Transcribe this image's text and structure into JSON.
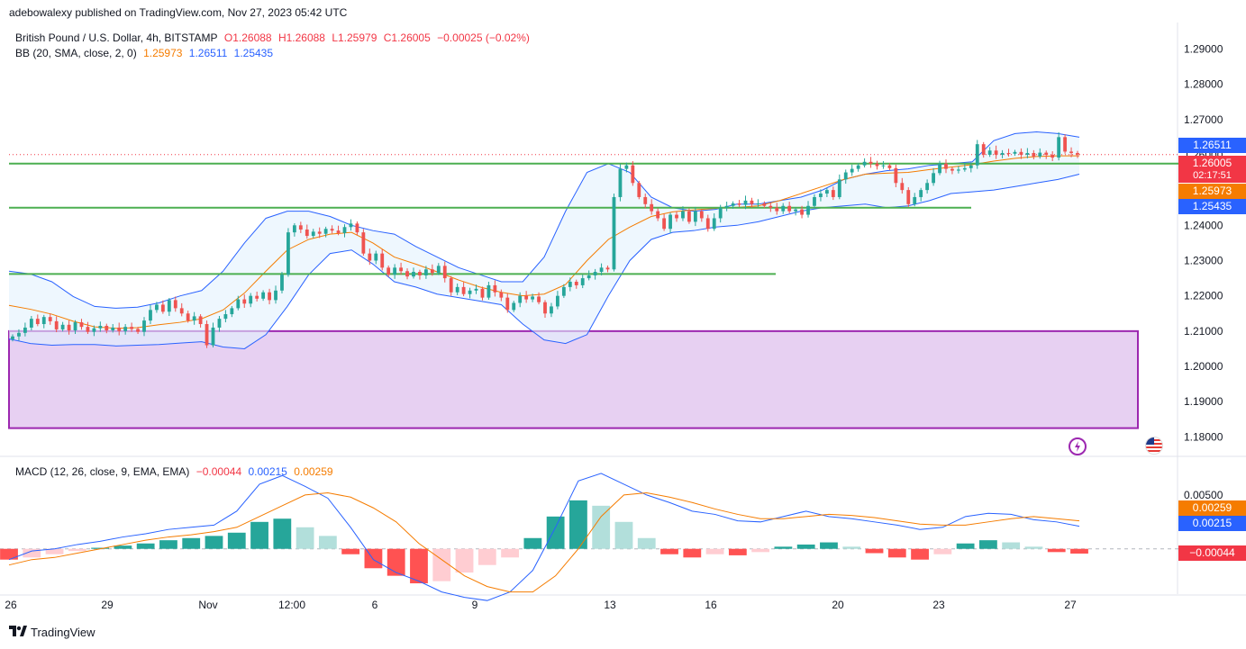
{
  "publisher": "adebowalexy published on TradingView.com, Nov 27, 2023 05:42 UTC",
  "legend": {
    "symbol": "British Pound / U.S. Dollar, 4h, BITSTAMP",
    "ohlc_o": "O1.26088",
    "ohlc_h": "H1.26088",
    "ohlc_l": "L1.25979",
    "ohlc_c": "C1.26005",
    "change": "−0.00025 (−0.02%)",
    "bb_label": "BB (20, SMA, close, 2, 0)",
    "bb_basis": "1.25973",
    "bb_upper": "1.26511",
    "bb_lower": "1.25435"
  },
  "macd_legend": {
    "label": "MACD (12, 26, close, 9, EMA, EMA)",
    "hist": "−0.00044",
    "macd": "0.00215",
    "signal": "0.00259"
  },
  "badges": {
    "bb_upper": "1.26511",
    "price": "1.26005",
    "countdown": "02:17:51",
    "bb_basis": "1.25973",
    "bb_lower": "1.25435",
    "macd_signal": "0.00259",
    "macd_line": "0.00215",
    "macd_hist": "−0.00044"
  },
  "brand": "TradingView",
  "colors": {
    "up": "#26a69a",
    "down": "#ef5350",
    "bb_upper": "#2962ff",
    "bb_basis": "#f57c00",
    "bb_fill": "#e3f2fd",
    "support": "#4caf50",
    "zone_fill": "#e1c4ef",
    "zone_border": "#9c27b0",
    "hist_up_strong": "#26a69a",
    "hist_up_weak": "#b2dfdb",
    "hist_down_strong": "#ff5252",
    "hist_down_weak": "#ffcdd2"
  },
  "icons": {
    "flash": "lightning-icon",
    "flag": "us-flag-icon",
    "logo": "tradingview-logo-icon"
  },
  "chart_data": [
    {
      "type": "candlestick",
      "title": "British Pound / U.S. Dollar, 4h, BITSTAMP",
      "ylim": [
        1.175,
        1.2975
      ],
      "y_ticks": [
        "1.29000",
        "1.28000",
        "1.27000",
        "1.26000",
        "1.25000",
        "1.24000",
        "1.23000",
        "1.22000",
        "1.21000",
        "1.20000",
        "1.19000",
        "1.18000"
      ],
      "x_ticks": [
        "26",
        "29",
        "Nov",
        "12:00",
        "6",
        "9",
        "13",
        "16",
        "20",
        "23",
        "27"
      ],
      "closes": [
        1.2085,
        1.2095,
        1.211,
        1.2135,
        1.212,
        1.214,
        1.2128,
        1.2105,
        1.2118,
        1.2102,
        1.2125,
        1.2112,
        1.2098,
        1.2108,
        1.2115,
        1.2102,
        1.211,
        1.21,
        1.2112,
        1.2106,
        1.2098,
        1.213,
        1.216,
        1.2175,
        1.2155,
        1.2188,
        1.2165,
        1.215,
        1.213,
        1.2142,
        1.212,
        1.206,
        1.211,
        1.2135,
        1.2148,
        1.2165,
        1.219,
        1.2178,
        1.22,
        1.2192,
        1.221,
        1.2188,
        1.2215,
        1.226,
        1.238,
        1.24,
        1.2388,
        1.237,
        1.2382,
        1.2376,
        1.239,
        1.2385,
        1.2378,
        1.2395,
        1.2405,
        1.238,
        1.232,
        1.23,
        1.232,
        1.228,
        1.226,
        1.228,
        1.227,
        1.2255,
        1.2268,
        1.2258,
        1.2275,
        1.2265,
        1.2285,
        1.225,
        1.221,
        1.2225,
        1.2205,
        1.2215,
        1.222,
        1.2195,
        1.223,
        1.221,
        1.2195,
        1.216,
        1.218,
        1.22,
        1.219,
        1.2198,
        1.2182,
        1.215,
        1.217,
        1.22,
        1.2225,
        1.224,
        1.223,
        1.225,
        1.2258,
        1.2268,
        1.228,
        1.2275,
        1.248,
        1.256,
        1.257,
        1.252,
        1.248,
        1.246,
        1.244,
        1.242,
        1.239,
        1.243,
        1.242,
        1.244,
        1.241,
        1.244,
        1.242,
        1.239,
        1.242,
        1.245,
        1.2455,
        1.2462,
        1.2458,
        1.247,
        1.246,
        1.2462,
        1.2455,
        1.245,
        1.244,
        1.2455,
        1.244,
        1.2445,
        1.243,
        1.2455,
        1.248,
        1.249,
        1.25,
        1.248,
        1.253,
        1.255,
        1.256,
        1.257,
        1.258,
        1.2575,
        1.2568,
        1.257,
        1.2562,
        1.252,
        1.25,
        1.246,
        1.248,
        1.25,
        1.252,
        1.2548,
        1.2575,
        1.256,
        1.2555,
        1.2558,
        1.2562,
        1.257,
        1.263,
        1.26,
        1.2612,
        1.26,
        1.2605,
        1.2603,
        1.2608,
        1.26,
        1.2605,
        1.2595,
        1.2606,
        1.26,
        1.2592,
        1.265,
        1.2609,
        1.2605,
        1.26005
      ],
      "bb_upper": [
        1.227,
        1.2262,
        1.224,
        1.2198,
        1.217,
        1.2165,
        1.2168,
        1.218,
        1.22,
        1.2215,
        1.227,
        1.235,
        1.242,
        1.244,
        1.244,
        1.2425,
        1.24,
        1.2385,
        1.2375,
        1.234,
        1.231,
        1.228,
        1.226,
        1.224,
        1.224,
        1.231,
        1.244,
        1.255,
        1.2575,
        1.255,
        1.248,
        1.245,
        1.244,
        1.2445,
        1.246,
        1.246,
        1.247,
        1.248,
        1.25,
        1.253,
        1.2545,
        1.2555,
        1.256,
        1.257,
        1.2575,
        1.258,
        1.264,
        1.266,
        1.2665,
        1.266,
        1.265
      ],
      "bb_basis": [
        1.2173,
        1.2162,
        1.2148,
        1.2128,
        1.2112,
        1.2108,
        1.211,
        1.2118,
        1.2125,
        1.2135,
        1.216,
        1.2208,
        1.227,
        1.233,
        1.236,
        1.2375,
        1.238,
        1.235,
        1.231,
        1.229,
        1.2268,
        1.2245,
        1.2225,
        1.221,
        1.22,
        1.2205,
        1.2232,
        1.23,
        1.236,
        1.2395,
        1.2425,
        1.2438,
        1.2444,
        1.2448,
        1.2451,
        1.2455,
        1.247,
        1.249,
        1.251,
        1.253,
        1.2545,
        1.2548,
        1.255,
        1.2558,
        1.2565,
        1.2572,
        1.2582,
        1.259,
        1.2595,
        1.2597,
        1.2597
      ],
      "bb_lower": [
        1.2078,
        1.2065,
        1.206,
        1.2062,
        1.2062,
        1.2058,
        1.206,
        1.2062,
        1.2066,
        1.207,
        1.2055,
        1.205,
        1.209,
        1.217,
        1.226,
        1.232,
        1.233,
        1.229,
        1.224,
        1.2225,
        1.2205,
        1.2195,
        1.2185,
        1.2175,
        1.212,
        1.2075,
        1.2065,
        1.209,
        1.22,
        1.23,
        1.236,
        1.238,
        1.2385,
        1.2395,
        1.24,
        1.241,
        1.2425,
        1.244,
        1.245,
        1.2455,
        1.246,
        1.245,
        1.2455,
        1.247,
        1.249,
        1.2495,
        1.25,
        1.251,
        1.252,
        1.253,
        1.2545
      ],
      "support_lines": [
        1.2575,
        1.245,
        1.2262
      ],
      "demand_zone": [
        1.1825,
        1.21
      ]
    },
    {
      "type": "line",
      "title": "MACD (12, 26, close, 9, EMA, EMA)",
      "y_ticks": [
        "0.00500"
      ],
      "series": [
        {
          "name": "MACD",
          "values": [
            -0.001,
            -0.0002,
            0.0,
            0.0004,
            0.0007,
            0.0011,
            0.0014,
            0.0018,
            0.002,
            0.0022,
            0.0035,
            0.006,
            0.0068,
            0.0058,
            0.0047,
            0.002,
            -0.001,
            -0.0022,
            -0.003,
            -0.004,
            -0.0045,
            -0.0048,
            -0.004,
            -0.002,
            0.002,
            0.0063,
            0.007,
            0.006,
            0.005,
            0.0043,
            0.0035,
            0.0032,
            0.0026,
            0.0025,
            0.003,
            0.0035,
            0.003,
            0.0028,
            0.0025,
            0.0022,
            0.0018,
            0.002,
            0.003,
            0.0033,
            0.0032,
            0.0027,
            0.0025,
            0.0021
          ]
        },
        {
          "name": "Signal",
          "values": [
            -0.0015,
            -0.001,
            -0.0008,
            -0.0004,
            0.0,
            0.0004,
            0.0008,
            0.0011,
            0.0013,
            0.0016,
            0.002,
            0.003,
            0.004,
            0.005,
            0.0052,
            0.0048,
            0.0038,
            0.0025,
            0.0005,
            -0.001,
            -0.0025,
            -0.0035,
            -0.004,
            -0.004,
            -0.0025,
            0.0,
            0.003,
            0.005,
            0.0052,
            0.0048,
            0.0043,
            0.0037,
            0.0032,
            0.0028,
            0.0028,
            0.003,
            0.0032,
            0.0031,
            0.0029,
            0.0026,
            0.0023,
            0.0022,
            0.0022,
            0.0025,
            0.0028,
            0.003,
            0.0028,
            0.0026
          ]
        },
        {
          "name": "Histogram",
          "values": [
            -0.001,
            -0.0008,
            -0.0005,
            -0.0002,
            0.0001,
            0.0003,
            0.0005,
            0.0008,
            0.001,
            0.0012,
            0.0015,
            0.0025,
            0.0028,
            0.002,
            0.0012,
            -0.0005,
            -0.0018,
            -0.0025,
            -0.0032,
            -0.003,
            -0.0022,
            -0.0015,
            -0.0008,
            0.001,
            0.003,
            0.0045,
            0.004,
            0.0025,
            0.001,
            -0.0005,
            -0.0008,
            -0.0005,
            -0.0006,
            -0.0003,
            0.0002,
            0.0004,
            0.0006,
            0.0002,
            -0.0004,
            -0.0008,
            -0.001,
            -0.0005,
            0.0005,
            0.0008,
            0.0006,
            0.0002,
            -0.0003,
            -0.00044
          ]
        }
      ]
    }
  ]
}
